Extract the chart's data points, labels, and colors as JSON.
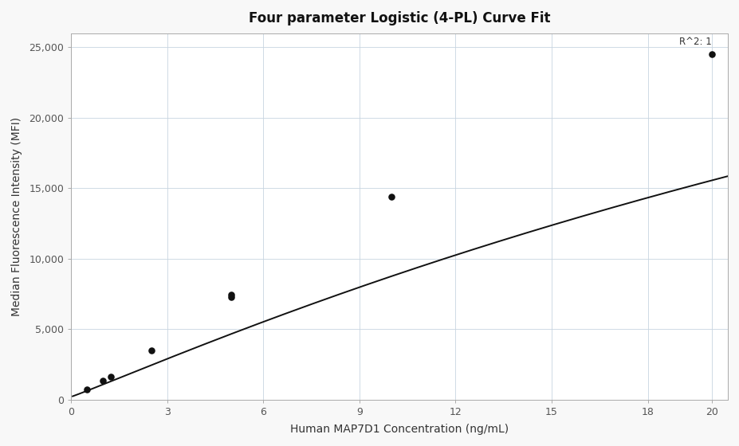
{
  "title": "Four parameter Logistic (4-PL) Curve Fit",
  "xlabel": "Human MAP7D1 Concentration (ng/mL)",
  "ylabel": "Median Fluorescence Intensity (MFI)",
  "r_squared_label": "R^2: 1",
  "data_points_x": [
    0.5,
    1.0,
    1.25,
    2.5,
    5.0,
    5.0,
    10.0,
    20.0
  ],
  "data_points_y": [
    700,
    1350,
    1650,
    3500,
    7250,
    7450,
    14400,
    24500
  ],
  "xlim": [
    0,
    20.5
  ],
  "ylim": [
    0,
    26000
  ],
  "xticks": [
    0,
    3,
    6,
    9,
    12,
    15,
    18
  ],
  "yticks": [
    0,
    5000,
    10000,
    15000,
    20000,
    25000
  ],
  "ytick_labels": [
    "0",
    "5,000",
    "10,000",
    "15,000",
    "20,000",
    "25,000"
  ],
  "xtick_labels": [
    "0",
    "3",
    "6",
    "9",
    "12",
    "15",
    "18"
  ],
  "x_extra_tick": 20,
  "x_extra_label": "20",
  "background_color": "#f8f8f8",
  "plot_bg_color": "#ffffff",
  "line_color": "#111111",
  "marker_color": "#111111",
  "grid_color": "#c8d4e0",
  "title_fontsize": 12,
  "label_fontsize": 10,
  "tick_fontsize": 9,
  "annotation_fontsize": 8.5,
  "4pl_A": 200,
  "4pl_B": 1.05,
  "4pl_C": 55,
  "4pl_D": 60000
}
